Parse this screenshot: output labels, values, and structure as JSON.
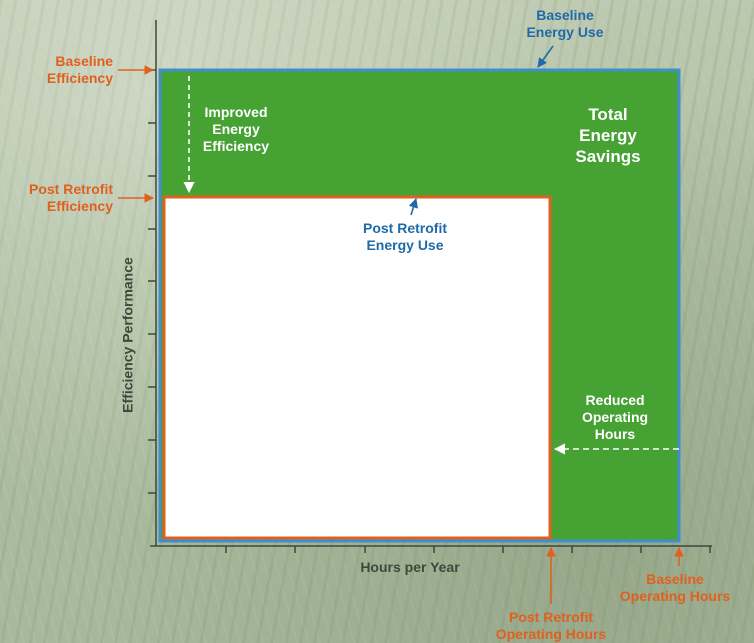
{
  "labels": {
    "baseline_energy_use": "Baseline\nEnergy Use",
    "baseline_efficiency": "Baseline\nEfficiency",
    "improved_energy_efficiency": "Improved\nEnergy\nEfficiency",
    "total_energy_savings": "Total\nEnergy\nSavings",
    "post_retrofit_efficiency": "Post Retrofit\nEfficiency",
    "post_retrofit_energy_use": "Post Retrofit\nEnergy Use",
    "reduced_operating_hours": "Reduced\nOperating\nHours",
    "y_axis": "Efficiency Performance",
    "x_axis": "Hours per Year",
    "baseline_operating_hours": "Baseline\nOperating Hours",
    "post_retrofit_operating_hours": "Post Retrofit\nOperating Hours"
  },
  "colors": {
    "savings_fill": "#47a234",
    "baseline_border": "#3f8fd0",
    "post_retrofit_border": "#e0601e",
    "post_retrofit_fill": "#ffffff",
    "axis": "#3b4a3a",
    "orange_text": "#e0601e",
    "blue_text": "#1f6aa8"
  }
}
